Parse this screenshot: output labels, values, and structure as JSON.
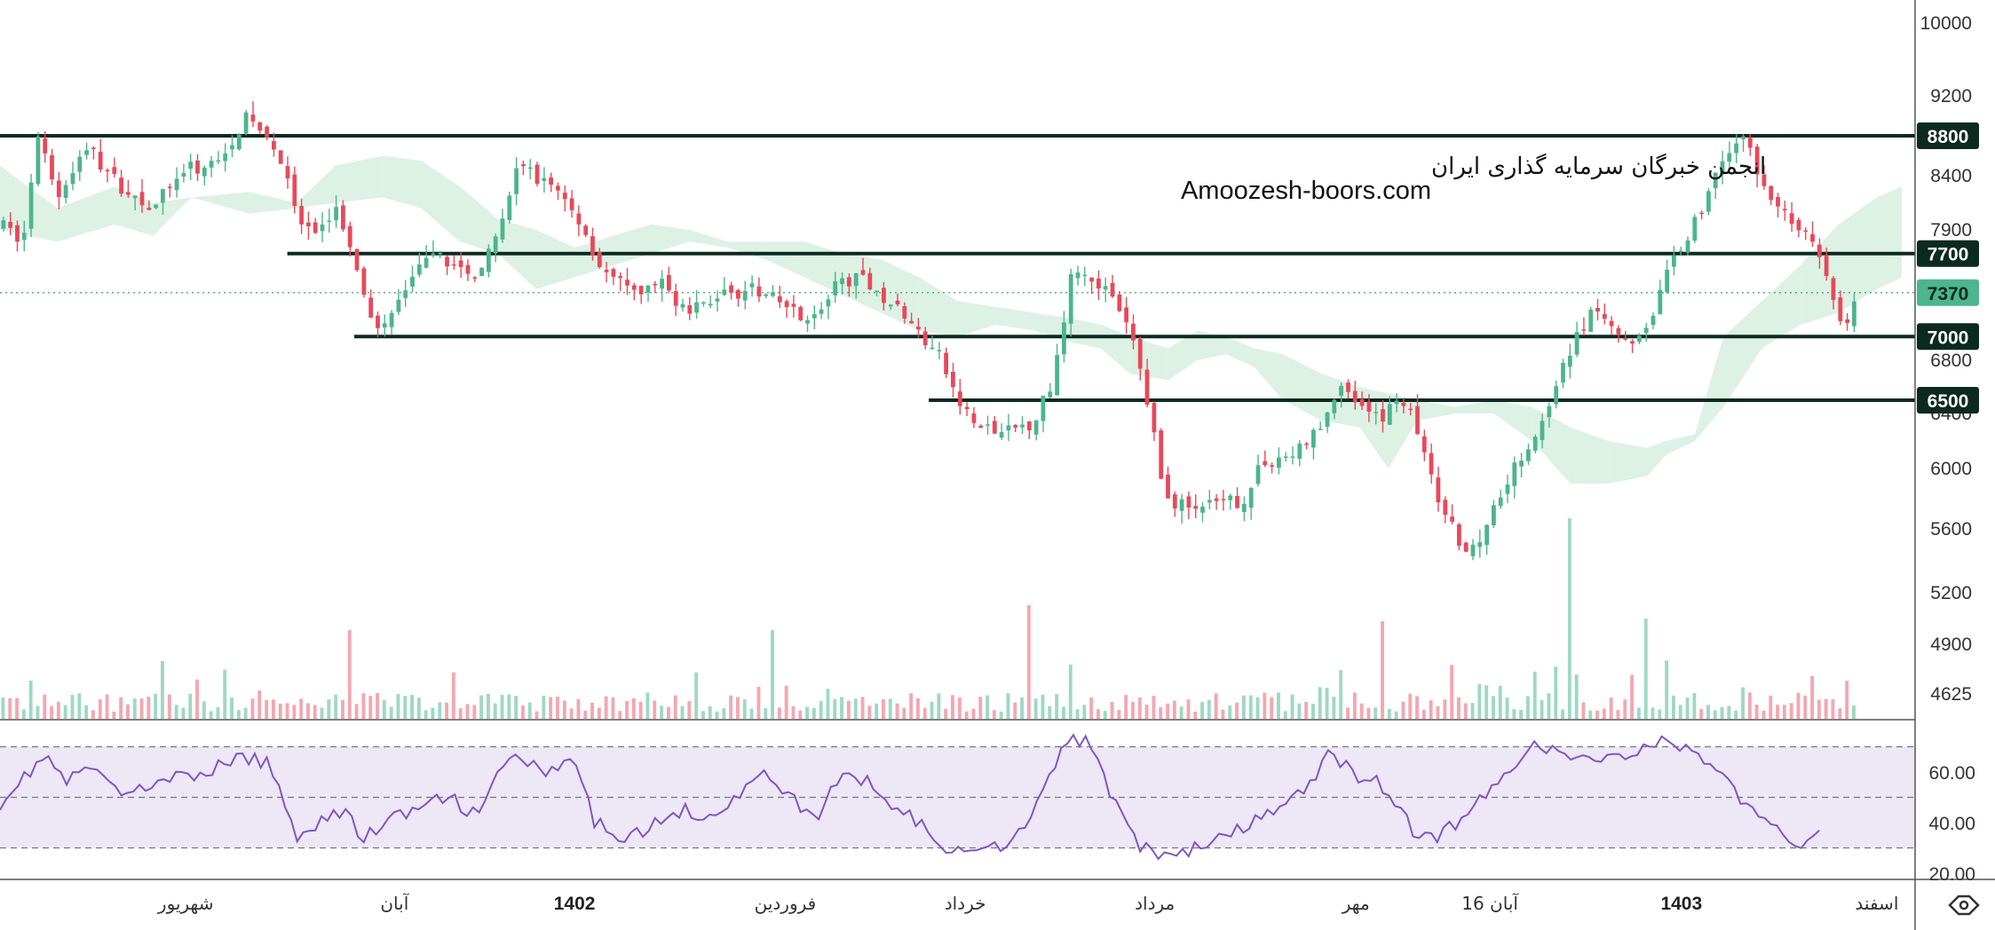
{
  "watermark": {
    "title": "انجمن خبرگان سرمایه گذاری ایران",
    "url": "Amoozesh-boors.com"
  },
  "colors": {
    "up": "#4cb58d",
    "down": "#e8495a",
    "level_line": "#0c2a20",
    "rsi_line": "#7e57c2",
    "rsi_band": "#ede7f6",
    "cloud_green": "#d7efe0",
    "cloud_red": "#fadadd",
    "current_price": "#4cb58d"
  },
  "chart_data": [
    {
      "type": "candlestick",
      "panel": "price",
      "y_ticks": [
        4625,
        4900,
        5200,
        5600,
        6000,
        6400,
        6800,
        7900,
        8400,
        9200,
        10000
      ],
      "ylim": [
        4625,
        10000
      ],
      "levels": [
        {
          "value": 8800,
          "label": "8800",
          "from_x": 0.0
        },
        {
          "value": 7700,
          "label": "7700",
          "from_x": 0.15
        },
        {
          "value": 7000,
          "label": "7000",
          "from_x": 0.185
        },
        {
          "value": 6500,
          "label": "6500",
          "from_x": 0.485
        }
      ],
      "current_price": {
        "value": 7370,
        "label": "7370"
      },
      "x_labels": [
        {
          "label": "شهریور",
          "pos": 0.097,
          "bold": false
        },
        {
          "label": "آبان",
          "pos": 0.206,
          "bold": false
        },
        {
          "label": "1402",
          "pos": 0.3,
          "bold": true
        },
        {
          "label": "فروردین",
          "pos": 0.41,
          "bold": false
        },
        {
          "label": "خرداد",
          "pos": 0.504,
          "bold": false
        },
        {
          "label": "مرداد",
          "pos": 0.603,
          "bold": false
        },
        {
          "label": "مهر",
          "pos": 0.708,
          "bold": false
        },
        {
          "label": "16 آبان",
          "pos": 0.778,
          "bold": false
        },
        {
          "label": "1403",
          "pos": 0.878,
          "bold": true
        },
        {
          "label": "اسفند",
          "pos": 0.98,
          "bold": false
        }
      ],
      "path": [
        [
          0,
          7950
        ],
        [
          0.012,
          7800
        ],
        [
          0.02,
          8750
        ],
        [
          0.03,
          8200
        ],
        [
          0.045,
          8700
        ],
        [
          0.06,
          8350
        ],
        [
          0.08,
          8100
        ],
        [
          0.095,
          8450
        ],
        [
          0.11,
          8500
        ],
        [
          0.13,
          9000
        ],
        [
          0.145,
          8650
        ],
        [
          0.155,
          8000
        ],
        [
          0.165,
          7800
        ],
        [
          0.175,
          8150
        ],
        [
          0.19,
          7300
        ],
        [
          0.2,
          7050
        ],
        [
          0.215,
          7500
        ],
        [
          0.23,
          7700
        ],
        [
          0.245,
          7500
        ],
        [
          0.26,
          7800
        ],
        [
          0.27,
          8500
        ],
        [
          0.29,
          8300
        ],
        [
          0.305,
          7900
        ],
        [
          0.315,
          7550
        ],
        [
          0.33,
          7350
        ],
        [
          0.345,
          7450
        ],
        [
          0.36,
          7200
        ],
        [
          0.375,
          7350
        ],
        [
          0.39,
          7400
        ],
        [
          0.405,
          7300
        ],
        [
          0.425,
          7150
        ],
        [
          0.44,
          7500
        ],
        [
          0.455,
          7450
        ],
        [
          0.47,
          7200
        ],
        [
          0.49,
          6850
        ],
        [
          0.5,
          6500
        ],
        [
          0.51,
          6300
        ],
        [
          0.525,
          6250
        ],
        [
          0.54,
          6350
        ],
        [
          0.55,
          6650
        ],
        [
          0.56,
          7600
        ],
        [
          0.575,
          7450
        ],
        [
          0.59,
          7050
        ],
        [
          0.6,
          6450
        ],
        [
          0.608,
          5800
        ],
        [
          0.62,
          5750
        ],
        [
          0.635,
          5750
        ],
        [
          0.65,
          5800
        ],
        [
          0.66,
          6050
        ],
        [
          0.675,
          6100
        ],
        [
          0.69,
          6300
        ],
        [
          0.7,
          6650
        ],
        [
          0.71,
          6450
        ],
        [
          0.72,
          6350
        ],
        [
          0.73,
          6550
        ],
        [
          0.74,
          6300
        ],
        [
          0.75,
          5800
        ],
        [
          0.765,
          5450
        ],
        [
          0.775,
          5600
        ],
        [
          0.785,
          5900
        ],
        [
          0.8,
          6200
        ],
        [
          0.81,
          6450
        ],
        [
          0.822,
          7000
        ],
        [
          0.835,
          7250
        ],
        [
          0.85,
          6950
        ],
        [
          0.862,
          7150
        ],
        [
          0.875,
          7700
        ],
        [
          0.888,
          8050
        ],
        [
          0.9,
          8650
        ],
        [
          0.91,
          8750
        ],
        [
          0.925,
          8200
        ],
        [
          0.94,
          7900
        ],
        [
          0.95,
          7700
        ],
        [
          0.958,
          7250
        ],
        [
          0.965,
          7050
        ],
        [
          0.97,
          7370
        ]
      ],
      "cloud": [
        [
          0.0,
          8500,
          7900
        ],
        [
          0.03,
          8100,
          7800
        ],
        [
          0.06,
          8300,
          7950
        ],
        [
          0.08,
          8150,
          7850
        ],
        [
          0.1,
          8200,
          8200
        ],
        [
          0.13,
          8250,
          8050
        ],
        [
          0.155,
          8150,
          8100
        ],
        [
          0.175,
          8500,
          8150
        ],
        [
          0.2,
          8600,
          8200
        ],
        [
          0.22,
          8550,
          8100
        ],
        [
          0.24,
          8300,
          7800
        ],
        [
          0.26,
          8000,
          7700
        ],
        [
          0.28,
          7900,
          7400
        ],
        [
          0.3,
          7750,
          7500
        ],
        [
          0.32,
          7850,
          7600
        ],
        [
          0.34,
          7950,
          7700
        ],
        [
          0.36,
          7900,
          7800
        ],
        [
          0.38,
          7800,
          7750
        ],
        [
          0.4,
          7800,
          7650
        ],
        [
          0.42,
          7800,
          7500
        ],
        [
          0.44,
          7700,
          7350
        ],
        [
          0.46,
          7650,
          7200
        ],
        [
          0.48,
          7500,
          7050
        ],
        [
          0.5,
          7300,
          7000
        ],
        [
          0.52,
          7250,
          7100
        ],
        [
          0.54,
          7200,
          7050
        ],
        [
          0.56,
          7150,
          6950
        ],
        [
          0.575,
          7100,
          6900
        ],
        [
          0.59,
          7000,
          6700
        ],
        [
          0.61,
          6900,
          6650
        ],
        [
          0.625,
          7050,
          6800
        ],
        [
          0.64,
          7000,
          6850
        ],
        [
          0.655,
          6900,
          6750
        ],
        [
          0.67,
          6850,
          6500
        ],
        [
          0.69,
          6700,
          6350
        ],
        [
          0.71,
          6600,
          6300
        ],
        [
          0.725,
          6550,
          6000
        ],
        [
          0.74,
          6500,
          6350
        ],
        [
          0.76,
          6450,
          6400
        ],
        [
          0.78,
          6500,
          6400
        ],
        [
          0.8,
          6450,
          6200
        ],
        [
          0.82,
          6300,
          5900
        ],
        [
          0.84,
          6200,
          5900
        ],
        [
          0.86,
          6150,
          5950
        ],
        [
          0.87,
          6200,
          6100
        ],
        [
          0.885,
          6250,
          6200
        ],
        [
          0.9,
          7000,
          6450
        ],
        [
          0.92,
          7300,
          6900
        ],
        [
          0.94,
          7600,
          7100
        ],
        [
          0.96,
          7950,
          7200
        ],
        [
          0.98,
          8200,
          7400
        ],
        [
          0.993,
          8300,
          7500
        ]
      ]
    },
    {
      "type": "bar",
      "panel": "volume"
    },
    {
      "type": "line",
      "panel": "rsi",
      "y_ticks": [
        20,
        40,
        60
      ],
      "ylim": [
        18,
        78
      ],
      "bands": [
        30,
        50,
        70
      ],
      "path": [
        [
          0,
          48
        ],
        [
          0.015,
          60
        ],
        [
          0.025,
          66
        ],
        [
          0.035,
          55
        ],
        [
          0.045,
          63
        ],
        [
          0.06,
          53
        ],
        [
          0.075,
          52
        ],
        [
          0.085,
          60
        ],
        [
          0.1,
          56
        ],
        [
          0.12,
          65
        ],
        [
          0.14,
          64
        ],
        [
          0.155,
          35
        ],
        [
          0.165,
          40
        ],
        [
          0.18,
          45
        ],
        [
          0.19,
          33
        ],
        [
          0.2,
          40
        ],
        [
          0.22,
          46
        ],
        [
          0.235,
          50
        ],
        [
          0.25,
          42
        ],
        [
          0.26,
          60
        ],
        [
          0.27,
          67
        ],
        [
          0.285,
          58
        ],
        [
          0.3,
          65
        ],
        [
          0.31,
          40
        ],
        [
          0.325,
          35
        ],
        [
          0.34,
          38
        ],
        [
          0.355,
          45
        ],
        [
          0.37,
          43
        ],
        [
          0.385,
          50
        ],
        [
          0.4,
          60
        ],
        [
          0.41,
          53
        ],
        [
          0.425,
          40
        ],
        [
          0.44,
          60
        ],
        [
          0.455,
          55
        ],
        [
          0.47,
          45
        ],
        [
          0.485,
          38
        ],
        [
          0.495,
          25
        ],
        [
          0.505,
          32
        ],
        [
          0.52,
          30
        ],
        [
          0.535,
          38
        ],
        [
          0.548,
          60
        ],
        [
          0.56,
          74
        ],
        [
          0.57,
          70
        ],
        [
          0.582,
          48
        ],
        [
          0.595,
          30
        ],
        [
          0.61,
          27
        ],
        [
          0.625,
          30
        ],
        [
          0.64,
          34
        ],
        [
          0.655,
          40
        ],
        [
          0.67,
          47
        ],
        [
          0.685,
          55
        ],
        [
          0.695,
          68
        ],
        [
          0.71,
          58
        ],
        [
          0.72,
          56
        ],
        [
          0.73,
          45
        ],
        [
          0.742,
          33
        ],
        [
          0.755,
          36
        ],
        [
          0.765,
          44
        ],
        [
          0.78,
          53
        ],
        [
          0.79,
          63
        ],
        [
          0.8,
          73
        ],
        [
          0.81,
          68
        ],
        [
          0.82,
          65
        ],
        [
          0.835,
          66
        ],
        [
          0.85,
          67
        ],
        [
          0.865,
          72
        ],
        [
          0.88,
          70
        ],
        [
          0.895,
          63
        ],
        [
          0.91,
          48
        ],
        [
          0.92,
          40
        ],
        [
          0.93,
          35
        ],
        [
          0.94,
          32
        ],
        [
          0.95,
          38
        ]
      ]
    }
  ],
  "toolbar": {
    "settings_icon": "hexagon-settings-icon"
  }
}
